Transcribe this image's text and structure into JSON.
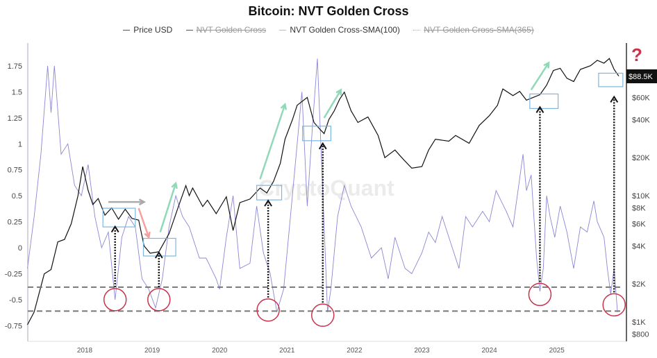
{
  "chart_data": {
    "type": "line",
    "title": "Bitcoin: NVT Golden Cross",
    "legend": [
      {
        "name": "Price USD",
        "enabled": true,
        "color": "#111111"
      },
      {
        "name": "NVT Golden Cross",
        "enabled": false,
        "color": "#555555"
      },
      {
        "name": "NVT Golden Cross-SMA(100)",
        "enabled": true,
        "color": "#8a86d6"
      },
      {
        "name": "NVT Golden Cross-SMA(365)",
        "enabled": false,
        "color": "#aaaacc"
      }
    ],
    "x_ticks": [
      "2018",
      "2019",
      "2020",
      "2021",
      "2022",
      "2023",
      "2024",
      "2025"
    ],
    "xlim": [
      2017.15,
      2025.92
    ],
    "y_left": {
      "ticks": [
        "1.75",
        "1.5",
        "1.25",
        "1",
        "0.75",
        "0.5",
        "0.25",
        "0",
        "-0.25",
        "-0.5",
        "-0.75"
      ],
      "ylim": [
        -0.8,
        1.98
      ]
    },
    "y_right": {
      "scale": "log",
      "ticks": [
        "$60K",
        "$40K",
        "$20K",
        "$10K",
        "$8K",
        "$6K",
        "$4K",
        "$2K",
        "$1K",
        "$800"
      ],
      "current_price_label": "$88.5K"
    },
    "thresholds": [
      -0.38,
      -0.61
    ],
    "series": [
      {
        "name": "Price USD",
        "axis": "right",
        "points": [
          [
            2017.15,
            950
          ],
          [
            2017.25,
            1200
          ],
          [
            2017.4,
            2400
          ],
          [
            2017.5,
            2600
          ],
          [
            2017.6,
            4300
          ],
          [
            2017.7,
            4500
          ],
          [
            2017.8,
            6000
          ],
          [
            2017.9,
            10000
          ],
          [
            2017.97,
            17000
          ],
          [
            2018.05,
            11000
          ],
          [
            2018.12,
            8500
          ],
          [
            2018.2,
            9500
          ],
          [
            2018.3,
            7000
          ],
          [
            2018.4,
            8000
          ],
          [
            2018.5,
            6500
          ],
          [
            2018.6,
            7800
          ],
          [
            2018.7,
            6600
          ],
          [
            2018.8,
            6400
          ],
          [
            2018.88,
            4000
          ],
          [
            2018.97,
            3500
          ],
          [
            2019.1,
            3600
          ],
          [
            2019.25,
            5000
          ],
          [
            2019.4,
            8500
          ],
          [
            2019.5,
            12000
          ],
          [
            2019.55,
            10000
          ],
          [
            2019.6,
            11500
          ],
          [
            2019.75,
            8200
          ],
          [
            2019.82,
            9200
          ],
          [
            2019.95,
            7200
          ],
          [
            2020.1,
            9800
          ],
          [
            2020.2,
            5300
          ],
          [
            2020.3,
            8800
          ],
          [
            2020.45,
            9400
          ],
          [
            2020.6,
            11500
          ],
          [
            2020.7,
            10500
          ],
          [
            2020.8,
            13000
          ],
          [
            2020.9,
            18000
          ],
          [
            2020.97,
            28000
          ],
          [
            2021.08,
            40000
          ],
          [
            2021.15,
            52000
          ],
          [
            2021.3,
            60000
          ],
          [
            2021.4,
            38000
          ],
          [
            2021.5,
            33000
          ],
          [
            2021.55,
            31000
          ],
          [
            2021.62,
            40000
          ],
          [
            2021.7,
            47000
          ],
          [
            2021.78,
            58000
          ],
          [
            2021.85,
            66000
          ],
          [
            2021.95,
            47000
          ],
          [
            2022.05,
            38000
          ],
          [
            2022.2,
            42000
          ],
          [
            2022.35,
            30000
          ],
          [
            2022.45,
            20000
          ],
          [
            2022.6,
            23000
          ],
          [
            2022.72,
            19500
          ],
          [
            2022.85,
            16500
          ],
          [
            2023.0,
            17000
          ],
          [
            2023.1,
            23000
          ],
          [
            2023.2,
            28000
          ],
          [
            2023.4,
            27000
          ],
          [
            2023.5,
            30000
          ],
          [
            2023.7,
            26000
          ],
          [
            2023.85,
            36000
          ],
          [
            2024.0,
            43000
          ],
          [
            2024.12,
            52000
          ],
          [
            2024.2,
            70000
          ],
          [
            2024.35,
            62000
          ],
          [
            2024.45,
            67000
          ],
          [
            2024.55,
            57000
          ],
          [
            2024.65,
            60000
          ],
          [
            2024.75,
            63000
          ],
          [
            2024.85,
            75000
          ],
          [
            2024.95,
            98000
          ],
          [
            2025.05,
            102000
          ],
          [
            2025.15,
            85000
          ],
          [
            2025.25,
            80000
          ],
          [
            2025.35,
            100000
          ],
          [
            2025.5,
            107000
          ],
          [
            2025.6,
            118000
          ],
          [
            2025.7,
            112000
          ],
          [
            2025.78,
            122000
          ],
          [
            2025.85,
            100000
          ],
          [
            2025.92,
            88500
          ]
        ]
      },
      {
        "name": "NVT Golden Cross-SMA(100)",
        "axis": "left",
        "points": [
          [
            2017.15,
            -0.2
          ],
          [
            2017.25,
            0.3
          ],
          [
            2017.35,
            0.9
          ],
          [
            2017.45,
            1.75
          ],
          [
            2017.5,
            1.3
          ],
          [
            2017.55,
            1.75
          ],
          [
            2017.65,
            0.9
          ],
          [
            2017.75,
            1.0
          ],
          [
            2017.85,
            0.6
          ],
          [
            2017.95,
            0.5
          ],
          [
            2018.05,
            0.8
          ],
          [
            2018.15,
            0.3
          ],
          [
            2018.25,
            0.0
          ],
          [
            2018.35,
            0.15
          ],
          [
            2018.45,
            -0.5
          ],
          [
            2018.55,
            0.1
          ],
          [
            2018.65,
            0.3
          ],
          [
            2018.75,
            0.2
          ],
          [
            2018.85,
            -0.3
          ],
          [
            2018.95,
            -0.4
          ],
          [
            2019.05,
            -0.58
          ],
          [
            2019.15,
            -0.3
          ],
          [
            2019.25,
            0.2
          ],
          [
            2019.35,
            0.5
          ],
          [
            2019.45,
            0.3
          ],
          [
            2019.55,
            0.2
          ],
          [
            2019.7,
            -0.1
          ],
          [
            2019.8,
            -0.1
          ],
          [
            2019.95,
            -0.3
          ],
          [
            2020.0,
            -0.4
          ],
          [
            2020.1,
            0.1
          ],
          [
            2020.2,
            0.5
          ],
          [
            2020.3,
            -0.2
          ],
          [
            2020.45,
            -0.15
          ],
          [
            2020.55,
            0.4
          ],
          [
            2020.65,
            -0.05
          ],
          [
            2020.75,
            -0.25
          ],
          [
            2020.85,
            -0.62
          ],
          [
            2020.95,
            -0.4
          ],
          [
            2021.05,
            0.3
          ],
          [
            2021.15,
            1.0
          ],
          [
            2021.22,
            1.5
          ],
          [
            2021.3,
            0.4
          ],
          [
            2021.38,
            1.2
          ],
          [
            2021.45,
            1.82
          ],
          [
            2021.52,
            0.7
          ],
          [
            2021.6,
            -0.62
          ],
          [
            2021.65,
            -0.4
          ],
          [
            2021.75,
            0.3
          ],
          [
            2021.85,
            0.6
          ],
          [
            2021.95,
            0.4
          ],
          [
            2022.1,
            0.2
          ],
          [
            2022.25,
            -0.1
          ],
          [
            2022.4,
            0.0
          ],
          [
            2022.5,
            -0.3
          ],
          [
            2022.6,
            0.1
          ],
          [
            2022.75,
            -0.2
          ],
          [
            2022.85,
            -0.25
          ],
          [
            2023.0,
            -0.05
          ],
          [
            2023.1,
            0.15
          ],
          [
            2023.2,
            0.05
          ],
          [
            2023.3,
            0.3
          ],
          [
            2023.45,
            0.0
          ],
          [
            2023.55,
            -0.2
          ],
          [
            2023.65,
            0.3
          ],
          [
            2023.75,
            0.2
          ],
          [
            2023.9,
            0.35
          ],
          [
            2024.0,
            0.25
          ],
          [
            2024.1,
            0.55
          ],
          [
            2024.25,
            0.35
          ],
          [
            2024.35,
            0.2
          ],
          [
            2024.5,
            0.9
          ],
          [
            2024.55,
            0.55
          ],
          [
            2024.62,
            0.7
          ],
          [
            2024.7,
            -0.1
          ],
          [
            2024.75,
            -0.42
          ],
          [
            2024.8,
            -0.2
          ],
          [
            2024.85,
            0.5
          ],
          [
            2024.9,
            0.3
          ],
          [
            2024.97,
            0.1
          ],
          [
            2025.05,
            0.4
          ],
          [
            2025.15,
            0.15
          ],
          [
            2025.25,
            -0.2
          ],
          [
            2025.35,
            0.2
          ],
          [
            2025.45,
            0.15
          ],
          [
            2025.55,
            0.45
          ],
          [
            2025.6,
            0.25
          ],
          [
            2025.7,
            0.1
          ],
          [
            2025.75,
            -0.2
          ],
          [
            2025.8,
            -0.45
          ],
          [
            2025.85,
            -0.2
          ],
          [
            2025.9,
            -0.62
          ]
        ]
      }
    ]
  },
  "watermark": "CryptoQuant",
  "unknown_marker": "?"
}
